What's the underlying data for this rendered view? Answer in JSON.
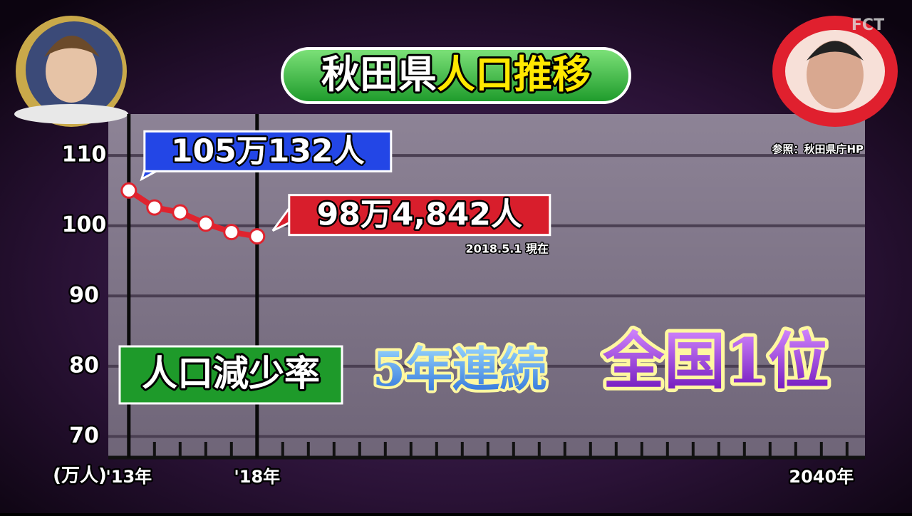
{
  "chart_data": {
    "type": "line",
    "title": {
      "lead": "秋田県",
      "highlight": "人口推移"
    },
    "y_unit": "(万人)",
    "x": [
      2013,
      2014,
      2015,
      2016,
      2017,
      2018
    ],
    "series": [
      {
        "color": "#e0232e",
        "values": [
          105.0132,
          102.6,
          101.9,
          100.3,
          99.1,
          98.4842
        ]
      }
    ],
    "value_labels": [
      "105万132人",
      null,
      null,
      null,
      null,
      "98万4,842人"
    ],
    "xlim": [
      2012.2,
      2041.7
    ],
    "xticks": [
      {
        "value": 2013,
        "label": "'13年"
      },
      {
        "value": 2018,
        "label": "'18年"
      },
      {
        "value": 2040,
        "label": "2040年"
      }
    ],
    "ylim": [
      67,
      115.9
    ],
    "yticks": [
      70,
      80,
      90,
      100,
      110
    ],
    "grid": true,
    "annotations": {
      "as_of": "2018.5.1 現在",
      "source": "参照：秋田県庁HP",
      "caption": {
        "label": "人口減少率",
        "streak": "5年連続",
        "rank": "全国1位"
      }
    },
    "logo": "FCT"
  }
}
